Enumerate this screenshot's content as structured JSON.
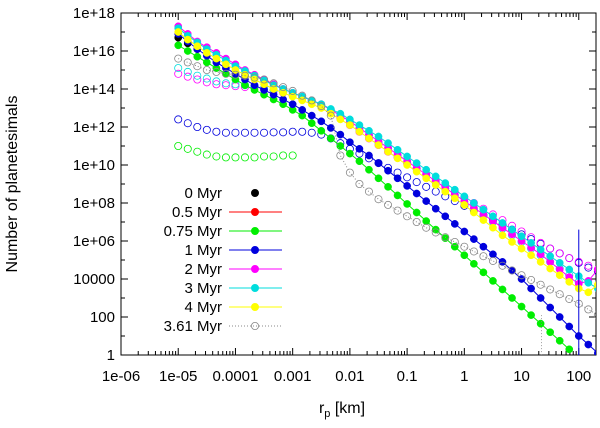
{
  "chart_data": {
    "type": "scatter",
    "title": "",
    "xlabel": "r_p [km]",
    "xlabel_main": "r",
    "xlabel_sub": "p",
    "xlabel_unit": " [km]",
    "ylabel": "Number of planetesimals",
    "xscale": "log",
    "yscale": "log",
    "xlim": [
      1e-06,
      200
    ],
    "ylim": [
      1,
      1e+18
    ],
    "x_ticks": [
      {
        "v": 1e-06,
        "label": "1e-06"
      },
      {
        "v": 1e-05,
        "label": "1e-05"
      },
      {
        "v": 0.0001,
        "label": "0.0001"
      },
      {
        "v": 0.001,
        "label": "0.001"
      },
      {
        "v": 0.01,
        "label": "0.01"
      },
      {
        "v": 0.1,
        "label": "0.1"
      },
      {
        "v": 1,
        "label": "1"
      },
      {
        "v": 10,
        "label": "10"
      },
      {
        "v": 100,
        "label": "100"
      }
    ],
    "y_ticks": [
      {
        "v": 1,
        "label": "1"
      },
      {
        "v": 100,
        "label": "100"
      },
      {
        "v": 10000,
        "label": "10000"
      },
      {
        "v": 1000000.0,
        "label": "1e+06"
      },
      {
        "v": 100000000.0,
        "label": "1e+08"
      },
      {
        "v": 10000000000.0,
        "label": "1e+10"
      },
      {
        "v": 1000000000000.0,
        "label": "1e+12"
      },
      {
        "v": 100000000000000.0,
        "label": "1e+14"
      },
      {
        "v": 1e+16,
        "label": "1e+16"
      },
      {
        "v": 1e+18,
        "label": "1e+18"
      }
    ],
    "legend_position": "left",
    "series": [
      {
        "name": "0 Myr",
        "color": "#000000",
        "filled": true,
        "draw_line": false,
        "x_start_log": -5,
        "x_step_log": 0.16667,
        "log_y": [
          16.7,
          16.4,
          16.1
        ]
      },
      {
        "name": "0.5 Myr",
        "color": "#ff0000",
        "filled": true,
        "draw_line": true,
        "x_start_log": -5,
        "x_step_log": 0.16667,
        "log_y": []
      },
      {
        "name": "0.75 Myr",
        "color": "#00ee00",
        "filled": true,
        "draw_line": true,
        "x_start_log": -5,
        "x_step_log": 0.16667,
        "log_y": [
          16.3,
          16.0,
          15.7,
          15.4,
          15.1,
          14.8,
          14.5,
          14.2,
          13.95,
          13.7,
          13.45,
          13.2,
          12.9,
          12.6,
          12.2,
          11.8,
          11.4,
          11.0,
          10.6,
          10.2,
          9.75,
          9.3,
          8.85,
          8.4,
          7.95,
          7.5,
          7.05,
          6.6,
          6.15,
          5.7,
          5.25,
          4.8,
          4.35,
          3.9,
          3.45,
          3.0,
          2.55,
          2.1,
          1.65,
          1.2,
          0.75,
          0.3
        ]
      },
      {
        "name": "1 Myr",
        "color": "#0000dd",
        "filled": true,
        "draw_line": true,
        "x_start_log": -5,
        "x_step_log": 0.16667,
        "log_y": [
          16.9,
          16.5,
          16.1,
          15.75,
          15.4,
          15.1,
          14.8,
          14.5,
          14.2,
          13.95,
          13.7,
          13.45,
          13.2,
          12.9,
          12.6,
          12.3,
          11.95,
          11.6,
          11.2,
          10.85,
          10.5,
          10.1,
          9.7,
          9.3,
          8.9,
          8.5,
          8.1,
          7.7,
          7.3,
          6.9,
          6.5,
          6.1,
          5.7,
          5.3,
          4.9,
          4.45,
          4.0,
          3.5,
          3.0,
          2.5,
          2.0,
          1.5,
          1.0,
          0.55,
          0.1,
          null,
          null,
          null,
          null,
          null,
          null,
          null,
          6.6
        ]
      },
      {
        "name": "2 Myr",
        "color": "#ff00ff",
        "filled": true,
        "draw_line": true,
        "x_start_log": -5,
        "x_step_log": 0.16667,
        "log_y": [
          17.3,
          16.9,
          16.5,
          16.2,
          15.9,
          15.6,
          15.3,
          15.0,
          14.75,
          14.5,
          14.25,
          14.0,
          13.8,
          13.6,
          13.4,
          13.2,
          12.9,
          12.6,
          12.3,
          11.95,
          11.6,
          11.25,
          10.9,
          10.55,
          10.2,
          9.85,
          9.5,
          9.15,
          8.8,
          8.45,
          8.1,
          7.75,
          7.4,
          7.05,
          6.7,
          6.35,
          6.0,
          5.65,
          5.3,
          4.9,
          4.5,
          4.1,
          3.75,
          3.9,
          4.5,
          5.2,
          5.9,
          6.4
        ]
      },
      {
        "name": "3 Myr",
        "color": "#00dddd",
        "filled": true,
        "draw_line": true,
        "x_start_log": -5,
        "x_step_log": 0.16667,
        "log_y": [
          17.2,
          16.8,
          16.45,
          16.1,
          15.8,
          15.5,
          15.2,
          14.95,
          14.7,
          14.45,
          14.2,
          14.0,
          13.8,
          13.6,
          13.4,
          13.2,
          12.95,
          12.7,
          12.4,
          12.1,
          11.8,
          11.5,
          11.15,
          10.8,
          10.45,
          10.1,
          9.75,
          9.4,
          9.05,
          8.7,
          8.35,
          8.0,
          7.65,
          7.3,
          6.95,
          6.6,
          6.25,
          5.9,
          5.55,
          5.2,
          4.85,
          4.5,
          4.15,
          3.8,
          3.5,
          4.0,
          4.8,
          5.6,
          6.4
        ]
      },
      {
        "name": "4 Myr",
        "color": "#ffff00",
        "filled": true,
        "draw_line": true,
        "x_start_log": -5,
        "x_step_log": 0.16667,
        "log_y": [
          17.0,
          16.6,
          16.25,
          15.9,
          15.6,
          15.3,
          15.0,
          14.75,
          14.5,
          14.25,
          14.0,
          13.8,
          13.6,
          13.4,
          13.2,
          13.0,
          12.7,
          12.4,
          12.1,
          11.75,
          11.4,
          11.05,
          10.7,
          10.35,
          10.0,
          9.65,
          9.3,
          8.95,
          8.6,
          8.25,
          7.9,
          7.5,
          7.1,
          6.7,
          6.3,
          5.95,
          5.6,
          5.25,
          4.9,
          4.55,
          4.2,
          3.85,
          3.5,
          3.3,
          3.7,
          4.5,
          5.4,
          6.3
        ]
      },
      {
        "name": "3.61 Myr",
        "color": "#888888",
        "filled": false,
        "draw_line": true,
        "dotted": true,
        "x_start_log": -5,
        "x_step_log": 0.16667,
        "log_y": [
          15.6,
          15.4,
          15.2,
          15.0,
          14.9,
          14.8,
          14.75,
          14.7,
          14.6,
          14.5,
          14.3,
          14.1,
          13.9,
          13.65,
          13.4,
          13.1,
          12.6,
          10.5,
          9.6,
          9.0,
          8.6,
          8.2,
          7.9,
          7.6,
          7.3,
          7.0,
          6.7,
          6.45,
          6.2,
          5.95,
          5.7,
          5.45,
          5.2,
          4.95,
          4.7,
          4.45,
          4.2,
          3.95,
          3.7,
          3.45,
          3.2,
          2.95,
          2.7,
          2.4,
          2.1,
          2.4,
          3.2,
          4.0,
          4.9
        ]
      }
    ],
    "extra_open_series": [
      {
        "color": "#0000dd",
        "x_start_log": -5,
        "x_step_log": 0.16667,
        "log_y": [
          12.4,
          12.2,
          12.0,
          11.85,
          11.75,
          11.7,
          11.7,
          11.7,
          11.7,
          11.7,
          11.72,
          11.72,
          11.75,
          11.75,
          11.7,
          11.6,
          11.4,
          11.15,
          10.85,
          10.6,
          10.35,
          10.1,
          9.85,
          9.6,
          9.35,
          9.1,
          8.85,
          8.6,
          8.35,
          8.1,
          7.85,
          7.6,
          7.35,
          7.1,
          6.85,
          6.6,
          6.35,
          6.1,
          5.85,
          5.6,
          5.35,
          5.1,
          4.85,
          4.6,
          4.4,
          4.9,
          5.7,
          6.4
        ]
      },
      {
        "color": "#00ee00",
        "x_start_log": -5,
        "x_step_log": 0.16667,
        "log_y": [
          11.0,
          10.85,
          10.7,
          10.55,
          10.45,
          10.4,
          10.4,
          10.4,
          10.4,
          10.45,
          10.45,
          10.5,
          10.5
        ]
      },
      {
        "color": "#ff00ff",
        "x_start_log": -5,
        "x_step_log": 0.16667,
        "log_y": [
          14.8,
          14.65,
          14.5,
          14.35,
          14.25,
          14.2,
          14.15,
          14.1,
          14.1,
          14.0,
          13.9,
          13.8,
          13.65,
          13.5,
          13.3,
          13.1,
          12.8,
          12.45,
          12.1,
          11.75,
          11.4,
          11.05,
          10.7,
          10.4,
          10.1,
          9.8,
          9.5,
          9.2,
          8.9,
          8.6,
          8.3,
          8.0,
          7.7,
          7.4,
          7.1,
          6.8,
          6.5,
          6.2,
          5.9,
          5.6,
          5.35,
          5.1,
          4.9,
          4.7,
          4.5,
          5.0,
          5.6,
          6.2
        ]
      },
      {
        "color": "#00dddd",
        "x_start_log": -5,
        "x_step_log": 0.16667,
        "log_y": [
          15.1,
          14.9,
          14.7,
          14.55,
          14.4,
          14.3,
          14.25,
          14.2,
          14.15,
          14.05,
          13.95,
          13.85,
          13.7,
          13.55,
          13.35,
          13.15,
          12.9,
          12.6,
          12.25,
          11.9,
          11.55,
          11.2,
          10.85,
          10.5,
          10.15,
          9.8,
          9.45,
          9.1,
          8.75,
          8.4,
          8.05,
          7.7,
          7.35,
          7.0,
          6.65,
          6.3,
          5.95,
          5.6,
          5.25,
          4.9,
          4.55,
          4.2,
          3.85
        ]
      }
    ]
  }
}
